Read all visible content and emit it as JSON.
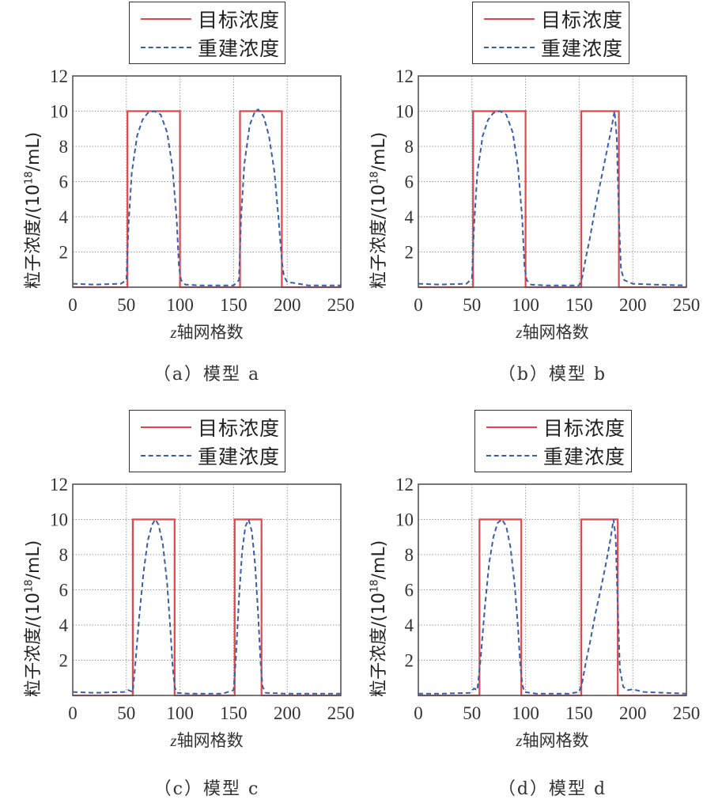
{
  "figure": {
    "legend": {
      "target_label": "目标浓度",
      "recon_label": "重建浓度"
    },
    "xlabel_prefix": "z",
    "xlabel_suffix": "轴网格数",
    "ylabel_main": "粒子浓度/(10",
    "ylabel_exp": "18",
    "ylabel_tail": "/mL)",
    "colors": {
      "target": "#e0474c",
      "recon": "#3a5fa8",
      "grid": "#9a9a9a",
      "axis": "#555555"
    }
  },
  "panels": [
    {
      "id": "a",
      "caption": "（a）模型 a"
    },
    {
      "id": "b",
      "caption": "（b）模型 b"
    },
    {
      "id": "c",
      "caption": "（c）模型 c"
    },
    {
      "id": "d",
      "caption": "（d）模型 d"
    }
  ],
  "chart_data": [
    {
      "type": "line",
      "title": "（a）模型 a",
      "xlabel": "z轴网格数",
      "ylabel": "粒子浓度/(10^18/mL)",
      "xlim": [
        0,
        250
      ],
      "ylim": [
        0,
        12
      ],
      "xticks": [
        0,
        50,
        100,
        150,
        200,
        250
      ],
      "yticks": [
        2,
        4,
        6,
        8,
        10,
        12
      ],
      "grid": true,
      "legend": [
        "目标浓度",
        "重建浓度"
      ],
      "legend_position": "top-center-outside",
      "series": [
        {
          "name": "目标浓度",
          "style": "solid-red",
          "x": [
            0,
            51,
            51,
            100,
            100,
            156,
            156,
            195,
            195,
            250
          ],
          "y": [
            0,
            0,
            10,
            10,
            0,
            0,
            10,
            10,
            0,
            0
          ]
        },
        {
          "name": "重建浓度",
          "style": "dashed-blue",
          "x": [
            0,
            20,
            45,
            50,
            52,
            55,
            60,
            65,
            70,
            76,
            82,
            88,
            93,
            97,
            99,
            101,
            105,
            120,
            150,
            155,
            157,
            160,
            165,
            170,
            173,
            178,
            183,
            188,
            192,
            195,
            197,
            200,
            220,
            250
          ],
          "y": [
            0.2,
            0.15,
            0.2,
            0.4,
            3.5,
            6.5,
            8.6,
            9.5,
            9.9,
            10.0,
            9.8,
            8.8,
            6.8,
            3.8,
            1.2,
            0.4,
            0.15,
            0.1,
            0.1,
            0.4,
            4.0,
            7.0,
            9.2,
            10.0,
            10.1,
            9.7,
            8.6,
            6.6,
            3.8,
            1.5,
            0.6,
            0.3,
            0.1,
            0.1
          ]
        }
      ]
    },
    {
      "type": "line",
      "title": "（b）模型 b",
      "xlabel": "z轴网格数",
      "ylabel": "粒子浓度/(10^18/mL)",
      "xlim": [
        0,
        250
      ],
      "ylim": [
        0,
        12
      ],
      "xticks": [
        0,
        50,
        100,
        150,
        200,
        250
      ],
      "yticks": [
        2,
        4,
        6,
        8,
        10,
        12
      ],
      "grid": true,
      "legend": [
        "目标浓度",
        "重建浓度"
      ],
      "legend_position": "top-center-outside",
      "series": [
        {
          "name": "目标浓度",
          "style": "solid-red",
          "x": [
            0,
            51,
            51,
            100,
            100,
            152,
            152,
            187,
            187,
            250
          ],
          "y": [
            0,
            0,
            10,
            10,
            0,
            0,
            10,
            10,
            0,
            0
          ]
        },
        {
          "name": "重建浓度",
          "style": "dashed-blue",
          "x": [
            0,
            20,
            45,
            50,
            52,
            55,
            60,
            65,
            70,
            76,
            82,
            88,
            93,
            97,
            99,
            101,
            105,
            120,
            150,
            153,
            156,
            160,
            165,
            170,
            175,
            180,
            183,
            185,
            187,
            189,
            192,
            200,
            220,
            250
          ],
          "y": [
            0.2,
            0.15,
            0.2,
            0.5,
            3.5,
            6.5,
            8.6,
            9.5,
            9.9,
            10.0,
            9.8,
            8.8,
            6.8,
            3.8,
            1.2,
            0.4,
            0.15,
            0.1,
            0.1,
            0.6,
            1.6,
            2.8,
            4.5,
            6.0,
            7.5,
            9.0,
            10.0,
            8.5,
            4.0,
            1.0,
            0.4,
            0.2,
            0.15,
            0.1
          ]
        }
      ]
    },
    {
      "type": "line",
      "title": "（c）模型 c",
      "xlabel": "z轴网格数",
      "ylabel": "粒子浓度/(10^18/mL)",
      "xlim": [
        0,
        250
      ],
      "ylim": [
        0,
        12
      ],
      "xticks": [
        0,
        50,
        100,
        150,
        200,
        250
      ],
      "yticks": [
        2,
        4,
        6,
        8,
        10,
        12
      ],
      "grid": true,
      "legend": [
        "目标浓度",
        "重建浓度"
      ],
      "legend_position": "top-center-outside",
      "series": [
        {
          "name": "目标浓度",
          "style": "solid-red",
          "x": [
            0,
            56,
            56,
            95,
            95,
            151,
            151,
            176,
            176,
            250
          ],
          "y": [
            0,
            0,
            10,
            10,
            0,
            0,
            10,
            10,
            0,
            0
          ]
        },
        {
          "name": "重建浓度",
          "style": "dashed-blue",
          "x": [
            0,
            20,
            48,
            52,
            56,
            58,
            62,
            66,
            70,
            74,
            77,
            80,
            84,
            88,
            91,
            93,
            95,
            97,
            110,
            140,
            150,
            152,
            155,
            158,
            161,
            164,
            167,
            170,
            173,
            175,
            177,
            180,
            200,
            250
          ],
          "y": [
            0.2,
            0.15,
            0.2,
            0.3,
            0.2,
            1.5,
            4.5,
            7.0,
            8.8,
            9.7,
            10.0,
            9.7,
            8.6,
            6.4,
            3.8,
            1.8,
            0.5,
            0.15,
            0.1,
            0.1,
            0.3,
            2.0,
            5.5,
            8.2,
            9.6,
            10.0,
            9.3,
            7.5,
            4.5,
            2.0,
            0.5,
            0.15,
            0.1,
            0.1
          ]
        }
      ]
    },
    {
      "type": "line",
      "title": "（d）模型 d",
      "xlabel": "z轴网格数",
      "ylabel": "粒子浓度/(10^18/mL)",
      "xlim": [
        0,
        250
      ],
      "ylim": [
        0,
        12
      ],
      "xticks": [
        0,
        50,
        100,
        150,
        200,
        250
      ],
      "yticks": [
        2,
        4,
        6,
        8,
        10,
        12
      ],
      "grid": true,
      "legend": [
        "目标浓度",
        "重建浓度"
      ],
      "legend_position": "top-center-outside",
      "series": [
        {
          "name": "目标浓度",
          "style": "solid-red",
          "x": [
            0,
            57,
            57,
            96,
            96,
            152,
            152,
            186,
            186,
            250
          ],
          "y": [
            0,
            0,
            10,
            10,
            0,
            0,
            10,
            10,
            0,
            0
          ]
        },
        {
          "name": "重建浓度",
          "style": "dashed-blue",
          "x": [
            0,
            20,
            48,
            52,
            55,
            58,
            62,
            66,
            70,
            74,
            78,
            82,
            86,
            90,
            93,
            95,
            97,
            99,
            110,
            140,
            150,
            153,
            156,
            160,
            165,
            170,
            175,
            179,
            182,
            184,
            186,
            188,
            191,
            195,
            200,
            210,
            250
          ],
          "y": [
            0.1,
            0.1,
            0.15,
            0.4,
            0.3,
            2.0,
            5.0,
            7.5,
            9.0,
            9.8,
            10.0,
            9.6,
            8.4,
            6.2,
            3.8,
            1.8,
            0.6,
            0.2,
            0.1,
            0.1,
            0.2,
            0.8,
            1.8,
            3.0,
            4.6,
            6.0,
            7.5,
            8.8,
            10.0,
            9.0,
            5.0,
            1.5,
            0.5,
            0.3,
            0.35,
            0.2,
            0.1
          ]
        }
      ]
    }
  ]
}
